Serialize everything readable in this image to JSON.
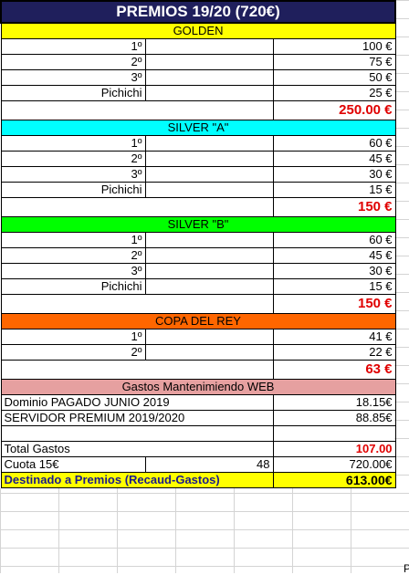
{
  "title": "PREMIOS 19/20 (720€)",
  "colors": {
    "title_bg": "#1f1f5c",
    "golden": "#ffff00",
    "silver_a": "#00ffff",
    "silver_b": "#00ff00",
    "copa": "#ff6600",
    "gastos": "#e6a0a0",
    "red_total": "#e00000",
    "final_bg": "#ffff00"
  },
  "sections": [
    {
      "name": "GOLDEN",
      "rows": [
        {
          "place": "1º",
          "amount": "100 €"
        },
        {
          "place": "2º",
          "amount": "75 €"
        },
        {
          "place": "3º",
          "amount": "50 €"
        },
        {
          "place": "Pichichi",
          "amount": "25 €"
        }
      ],
      "total": "250.00 €"
    },
    {
      "name": "SILVER \"A\"",
      "rows": [
        {
          "place": "1º",
          "amount": "60 €"
        },
        {
          "place": "2º",
          "amount": "45 €"
        },
        {
          "place": "3º",
          "amount": "30 €"
        },
        {
          "place": "Pichichi",
          "amount": "15 €"
        }
      ],
      "total": "150 €"
    },
    {
      "name": "SILVER \"B\"",
      "rows": [
        {
          "place": "1º",
          "amount": "60 €"
        },
        {
          "place": "2º",
          "amount": "45 €"
        },
        {
          "place": "3º",
          "amount": "30 €"
        },
        {
          "place": "Pichichi",
          "amount": "15 €"
        }
      ],
      "total": "150 €"
    },
    {
      "name": "COPA DEL REY",
      "rows": [
        {
          "place": "1º",
          "amount": "41 €"
        },
        {
          "place": "2º",
          "amount": "22 €"
        }
      ],
      "total": "63 €"
    }
  ],
  "gastos": {
    "header": "Gastos Mantenimiendo WEB",
    "items": [
      {
        "label": "Dominio PAGADO JUNIO 2019",
        "amount": "18.15€"
      },
      {
        "label": "SERVIDOR PREMIUM 2019/2020",
        "amount": "88.85€"
      }
    ],
    "total_label": "Total Gastos",
    "total_value": "107.00",
    "cuota_label": "Cuota 15€",
    "cuota_count": "48",
    "cuota_value": "720.00€",
    "final_label": "Destinado a Premios (Recaud-Gastos)",
    "final_value": "613.00€"
  },
  "edge_char": "P"
}
